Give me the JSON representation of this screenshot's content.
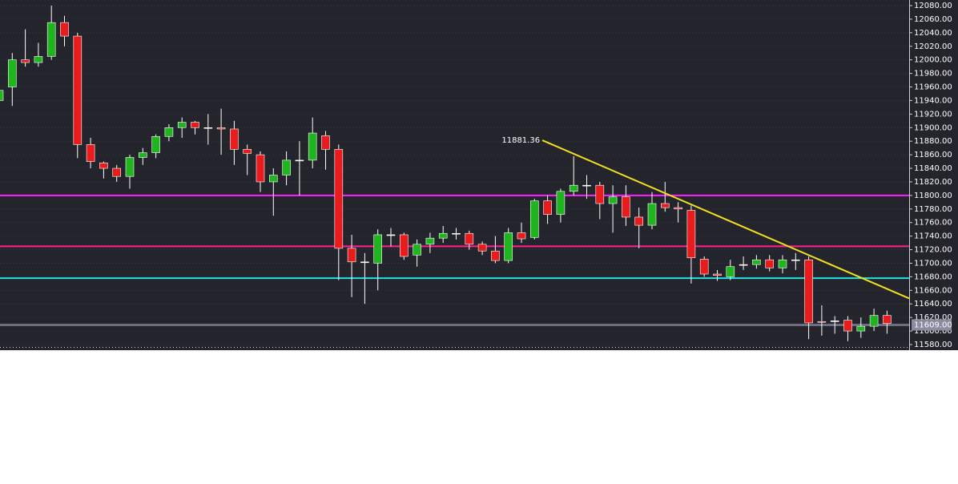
{
  "chart_data": {
    "type": "candlestick",
    "open": [
      11940,
      11960,
      12000,
      11996,
      12005,
      12055,
      12035,
      11875,
      11848,
      11840,
      11828,
      11856,
      11863,
      11887,
      11900,
      11908,
      11900,
      11900,
      11898,
      11868,
      11860,
      11820,
      11830,
      11852,
      11852,
      11888,
      11868,
      11722,
      11702,
      11700,
      11742,
      11742,
      11712,
      11728,
      11737,
      11744,
      11744,
      11728,
      11718,
      11704,
      11745,
      11738,
      11792,
      11772,
      11806,
      11815,
      11815,
      11788,
      11798,
      11768,
      11756,
      11788,
      11782,
      11778,
      11706,
      11684,
      11680,
      11698,
      11698,
      11705,
      11693,
      11705,
      11705,
      11614,
      11615,
      11616,
      11600,
      11607,
      11623
    ],
    "high": [
      11965,
      12010,
      12045,
      12025,
      12080,
      12065,
      12040,
      11885,
      11850,
      11845,
      11860,
      11870,
      11890,
      11905,
      11915,
      11910,
      11920,
      11928,
      11910,
      11875,
      11865,
      11840,
      11865,
      11880,
      11915,
      11895,
      11875,
      11742,
      11715,
      11750,
      11752,
      11745,
      11735,
      11745,
      11755,
      11752,
      11748,
      11732,
      11740,
      11752,
      11760,
      11795,
      11800,
      11810,
      11858,
      11830,
      11820,
      11815,
      11815,
      11782,
      11805,
      11820,
      11790,
      11785,
      11710,
      11690,
      11705,
      11710,
      11712,
      11712,
      11712,
      11715,
      11710,
      11638,
      11622,
      11622,
      11620,
      11633,
      11630
    ],
    "low": [
      11935,
      11932,
      11990,
      11990,
      12000,
      12020,
      11855,
      11840,
      11825,
      11820,
      11810,
      11845,
      11855,
      11880,
      11885,
      11890,
      11875,
      11860,
      11845,
      11830,
      11805,
      11770,
      11815,
      11800,
      11840,
      11838,
      11675,
      11650,
      11640,
      11660,
      11725,
      11705,
      11695,
      11715,
      11730,
      11735,
      11720,
      11712,
      11700,
      11700,
      11730,
      11735,
      11758,
      11760,
      11800,
      11795,
      11765,
      11745,
      11755,
      11722,
      11750,
      11776,
      11760,
      11670,
      11680,
      11674,
      11675,
      11690,
      11692,
      11688,
      11685,
      11690,
      11588,
      11593,
      11596,
      11585,
      11590,
      11600,
      11596
    ],
    "close": [
      11955,
      12000,
      11996,
      12005,
      12055,
      12035,
      11875,
      11850,
      11840,
      11828,
      11856,
      11863,
      11887,
      11900,
      11908,
      11900,
      11900,
      11898,
      11868,
      11862,
      11820,
      11830,
      11852,
      11852,
      11892,
      11868,
      11722,
      11702,
      11702,
      11742,
      11742,
      11710,
      11728,
      11737,
      11744,
      11744,
      11728,
      11718,
      11704,
      11745,
      11736,
      11792,
      11772,
      11806,
      11815,
      11815,
      11788,
      11798,
      11768,
      11756,
      11788,
      11782,
      11780,
      11708,
      11684,
      11682,
      11695,
      11698,
      11705,
      11693,
      11705,
      11705,
      11612,
      11613,
      11615,
      11600,
      11607,
      11623,
      11611
    ],
    "up_color": "#1fb51f",
    "down_color": "#e81c1c",
    "flat_color": "#ffffff",
    "ylim": [
      11580,
      12080
    ],
    "yticks": [
      {
        "value": 11580,
        "label": "11580.00"
      },
      {
        "value": 11600,
        "label": "11600.00"
      },
      {
        "value": 11620,
        "label": "11620.00"
      },
      {
        "value": 11640,
        "label": "11640.00"
      },
      {
        "value": 11660,
        "label": "11660.00"
      },
      {
        "value": 11680,
        "label": "11680.00"
      },
      {
        "value": 11700,
        "label": "11700.00"
      },
      {
        "value": 11720,
        "label": "11720.00"
      },
      {
        "value": 11740,
        "label": "11740.00"
      },
      {
        "value": 11760,
        "label": "11760.00"
      },
      {
        "value": 11780,
        "label": "11780.00"
      },
      {
        "value": 11800,
        "label": "11800.00"
      },
      {
        "value": 11820,
        "label": "11820.00"
      },
      {
        "value": 11840,
        "label": "11840.00"
      },
      {
        "value": 11860,
        "label": "11860.00"
      },
      {
        "value": 11880,
        "label": "11880.00"
      },
      {
        "value": 11900,
        "label": "11900.00"
      },
      {
        "value": 11920,
        "label": "11920.00"
      },
      {
        "value": 11940,
        "label": "11940.00"
      },
      {
        "value": 11960,
        "label": "11960.00"
      },
      {
        "value": 11980,
        "label": "11980.00"
      },
      {
        "value": 12000,
        "label": "12000.00"
      },
      {
        "value": 12020,
        "label": "12020.00"
      },
      {
        "value": 12040,
        "label": "12040.00"
      },
      {
        "value": 12060,
        "label": "12060.00"
      },
      {
        "value": 12080,
        "label": "12080.00"
      }
    ],
    "grid": true,
    "levels": [
      {
        "value": 11800,
        "color": "#ff20ff"
      },
      {
        "value": 11725,
        "color": "#ff2090"
      },
      {
        "value": 11678,
        "color": "#20e0e0"
      }
    ],
    "price_line": {
      "value": 11609,
      "label": "11609.00",
      "color": "#6e6e80"
    },
    "trendline": {
      "x": [
        41.6,
        69.7
      ],
      "values": [
        11881.36,
        11648
      ],
      "color": "#f0e020"
    }
  }
}
